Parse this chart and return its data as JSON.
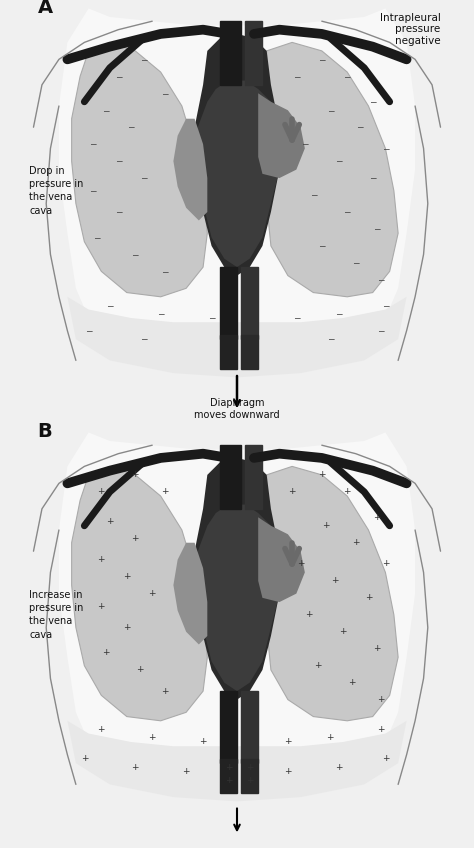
{
  "bg_color": "#f0f0f0",
  "thorax_bg": "#e8e8e8",
  "lung_color": "#c8c8c8",
  "lung_edge": "#aaaaaa",
  "mediastinum_dark": "#2a2a2a",
  "heart_body": "#3a3a3a",
  "heart_ventricle": "#4a4a4a",
  "pulm_artery": "#888888",
  "vessel_color": "#1a1a1a",
  "body_line": "#888888",
  "text_color": "#111111",
  "diaphragm_area": "#d8d8d8",
  "label_A": "A",
  "label_B": "B",
  "top_right_text": "Intrapleural\npressure\nnegative",
  "label_drop": "Drop in\npressure in\nthe vena\ncava",
  "label_diaphragm": "Diaphragm\nmoves downward",
  "label_increase": "Increase in\npressure in\nthe vena\ncava"
}
